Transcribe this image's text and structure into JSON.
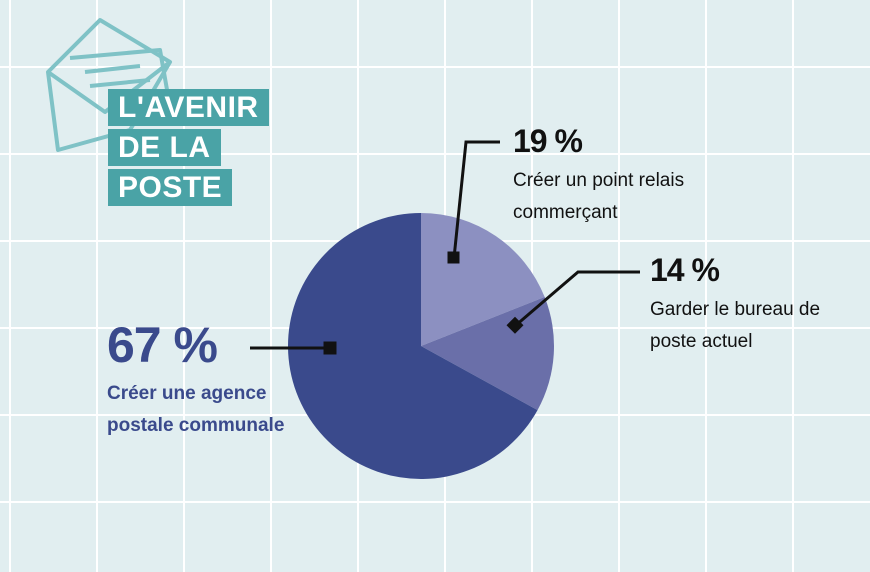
{
  "chart_data": {
    "type": "pie",
    "title": "L'AVENIR DE LA POSTE",
    "categories": [
      "Créer un point relais commerçant",
      "Garder le bureau de poste actuel",
      "Créer une agence postale communale"
    ],
    "values": [
      19,
      14,
      67
    ],
    "value_labels": [
      "19 %",
      "14 %",
      "67 %"
    ],
    "colors": [
      "#8c90c1",
      "#6a6fa9",
      "#3a4a8c"
    ]
  }
}
